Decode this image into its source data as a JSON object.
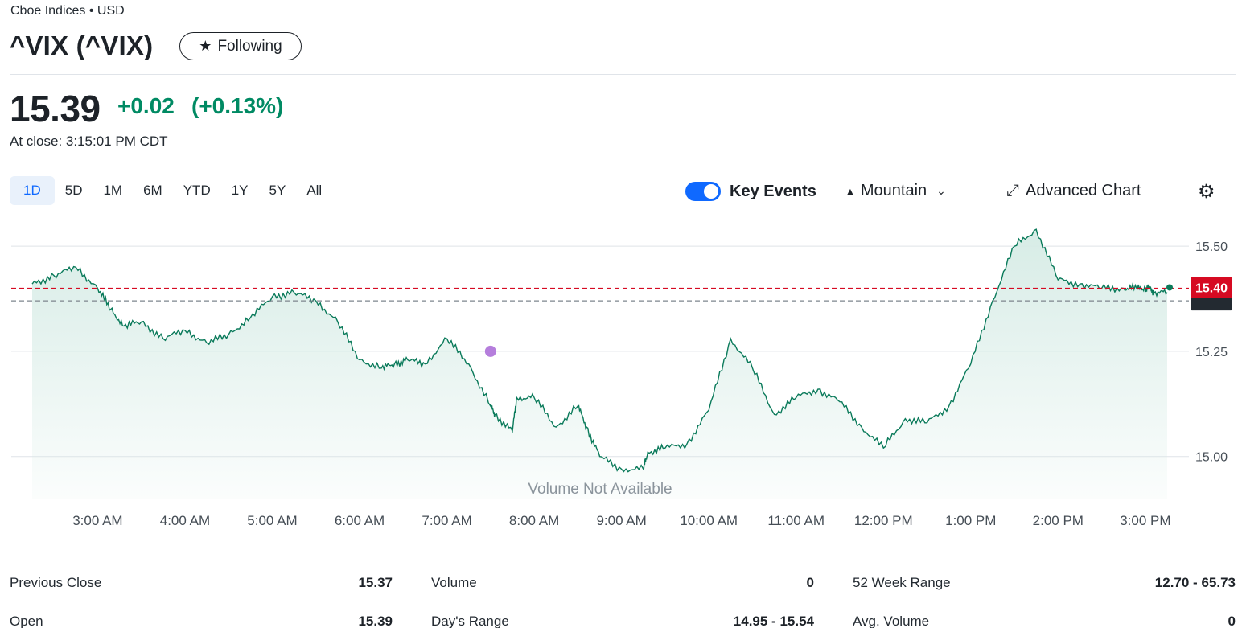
{
  "header": {
    "exchange": "Cboe Indices • USD",
    "title": "^VIX (^VIX)",
    "follow_label": "Following"
  },
  "quote": {
    "price": "15.39",
    "change": "+0.02",
    "change_pct": "(+0.13%)",
    "close_time": "At close: 3:15:01 PM CDT",
    "up_color": "#008a63"
  },
  "ranges": [
    "1D",
    "5D",
    "1M",
    "6M",
    "YTD",
    "1Y",
    "5Y",
    "All"
  ],
  "active_range": "1D",
  "toolbar": {
    "key_events_label": "Key Events",
    "key_events_on": true,
    "chart_type_label": "Mountain",
    "advanced_label": "Advanced Chart",
    "icons": [
      "mountain-icon",
      "chevron-down-icon",
      "expand-icon",
      "gear-icon"
    ]
  },
  "chart_data": {
    "type": "area",
    "x_tick_labels": [
      "3:00 AM",
      "4:00 AM",
      "5:00 AM",
      "6:00 AM",
      "7:00 AM",
      "8:00 AM",
      "9:00 AM",
      "10:00 AM",
      "11:00 AM",
      "12:00 PM",
      "1:00 PM",
      "2:00 PM",
      "3:00 PM"
    ],
    "y_tick_labels": [
      "15.50",
      "15.25",
      "15.00"
    ],
    "y_ticks": [
      15.5,
      15.25,
      15.0
    ],
    "ylim": [
      14.9,
      15.55
    ],
    "x_hours": [
      2.25,
      15.25
    ],
    "series": [
      {
        "x": [
          2.25,
          2.5,
          2.75,
          3.0,
          3.15,
          3.3,
          3.5,
          3.75,
          4.0,
          4.25,
          4.5,
          4.75,
          5.0,
          5.25,
          5.5,
          5.75,
          6.0,
          6.25,
          6.4,
          6.55,
          6.75,
          7.0,
          7.25,
          7.5,
          7.55,
          7.75,
          7.8,
          8.0,
          8.25,
          8.5,
          8.6,
          8.75,
          9.0,
          9.25,
          9.3,
          9.5,
          9.75,
          10.0,
          10.25,
          10.5,
          10.75,
          11.0,
          11.25,
          11.5,
          11.75,
          12.0,
          12.25,
          12.5,
          12.75,
          13.0,
          13.25,
          13.5,
          13.75,
          14.0,
          14.25,
          14.5,
          14.75,
          14.9,
          15.0,
          15.05,
          15.1,
          15.25
        ],
        "y": [
          15.41,
          15.43,
          15.45,
          15.4,
          15.35,
          15.31,
          15.32,
          15.28,
          15.3,
          15.27,
          15.29,
          15.33,
          15.38,
          15.39,
          15.37,
          15.32,
          15.23,
          15.21,
          15.22,
          15.23,
          15.22,
          15.28,
          15.22,
          15.12,
          15.1,
          15.06,
          15.14,
          15.14,
          15.07,
          15.12,
          15.07,
          15.0,
          14.97,
          14.97,
          15.01,
          15.02,
          15.03,
          15.11,
          15.28,
          15.21,
          15.1,
          15.14,
          15.16,
          15.13,
          15.07,
          15.02,
          15.09,
          15.08,
          15.12,
          15.22,
          15.37,
          15.5,
          15.54,
          15.42,
          15.41,
          15.4,
          15.4,
          15.4,
          15.4,
          15.4,
          15.39,
          15.39
        ]
      }
    ],
    "previous_close": 15.37,
    "current_label": "15.40",
    "current_value": 15.4,
    "key_event_x": 7.5,
    "key_event_y": 15.25,
    "volume_note": "Volume Not Available",
    "line_color": "#0a7a5a",
    "fill_color": "#d7ece6",
    "current_color": "#d60a22",
    "event_color": "#b57edc"
  },
  "stats": [
    [
      {
        "label": "Previous Close",
        "value": "15.37"
      },
      {
        "label": "Open",
        "value": "15.39"
      }
    ],
    [
      {
        "label": "Volume",
        "value": "0"
      },
      {
        "label": "Day's Range",
        "value": "14.95 - 15.54"
      }
    ],
    [
      {
        "label": "52 Week Range",
        "value": "12.70 - 65.73"
      },
      {
        "label": "Avg. Volume",
        "value": "0"
      }
    ]
  ]
}
